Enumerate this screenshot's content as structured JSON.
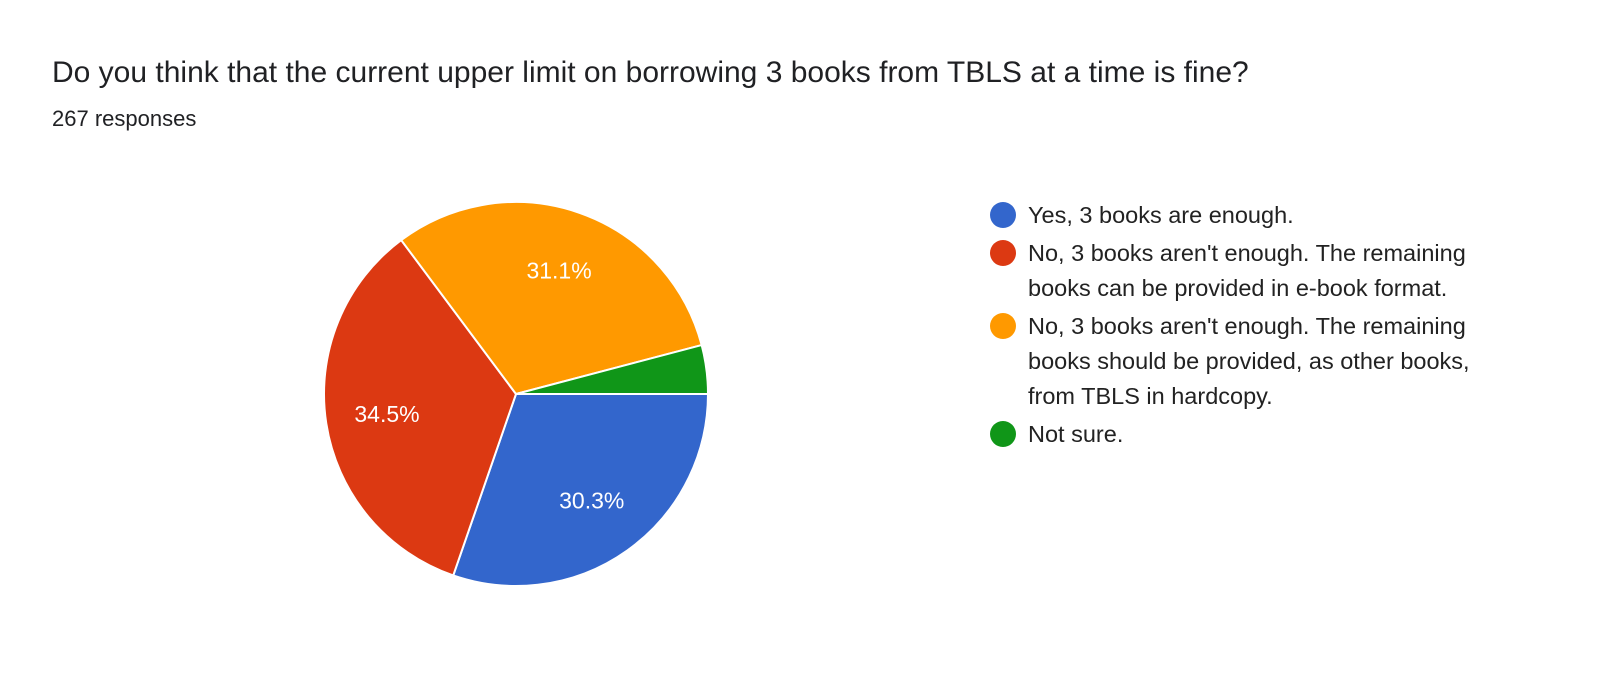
{
  "title": "Do you think that the current upper limit on borrowing 3 books from TBLS at a time is fine?",
  "subtitle": "267 responses",
  "chart_data": {
    "type": "pie",
    "title": "Do you think that the current upper limit on borrowing 3 books from TBLS at a time is fine?",
    "legend_position": "right",
    "series": [
      {
        "name": "Yes, 3 books are enough.",
        "value": 30.3,
        "label": "30.3%",
        "color": "#3366cc"
      },
      {
        "name": "No, 3 books aren't enough. The remaining books can be provided in e-book format.",
        "value": 34.5,
        "label": "34.5%",
        "color": "#dc3912"
      },
      {
        "name": "No, 3 books aren't enough. The remaining books should be provided, as other books, from TBLS in hardcopy.",
        "value": 31.1,
        "label": "31.1%",
        "color": "#ff9900"
      },
      {
        "name": "Not sure.",
        "value": 4.1,
        "label": "",
        "color": "#109618"
      }
    ]
  }
}
